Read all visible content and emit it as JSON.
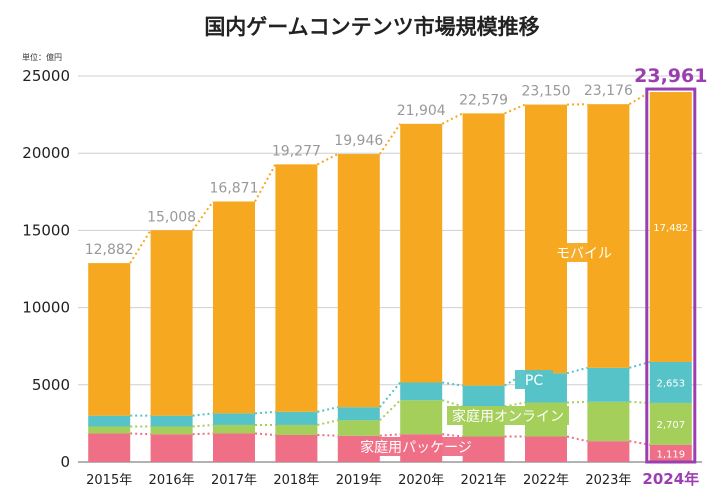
{
  "chart_data": {
    "type": "bar",
    "stacked": true,
    "title": "国内ゲームコンテンツ市場規模推移",
    "unit_label": "単位：億円",
    "categories": [
      "2015年",
      "2016年",
      "2017年",
      "2018年",
      "2019年",
      "2020年",
      "2021年",
      "2022年",
      "2023年",
      "2024年"
    ],
    "highlight_index": 9,
    "ylim": [
      0,
      25000
    ],
    "yticks": [
      0,
      5000,
      10000,
      15000,
      20000,
      25000
    ],
    "grid": true,
    "totals": [
      12882,
      15008,
      16871,
      19277,
      19946,
      21904,
      22579,
      23150,
      23176,
      23961
    ],
    "total_labels": [
      "12,882",
      "15,008",
      "16,871",
      "19,277",
      "19,946",
      "21,904",
      "22,579",
      "23,150",
      "23,176",
      "23,961"
    ],
    "series": [
      {
        "name": "家庭用パッケージ",
        "color": "#ee6f86",
        "values": [
          1850,
          1800,
          1850,
          1750,
          1700,
          1800,
          1650,
          1650,
          1350,
          1119
        ]
      },
      {
        "name": "家庭用オンライン",
        "color": "#a4cf5a",
        "values": [
          450,
          500,
          550,
          650,
          1000,
          2200,
          1950,
          2200,
          2550,
          2707
        ]
      },
      {
        "name": "PC",
        "color": "#56c3c8",
        "values": [
          700,
          700,
          750,
          850,
          850,
          1150,
          1350,
          1900,
          2200,
          2653
        ]
      },
      {
        "name": "モバイル",
        "color": "#f6a920",
        "values": [
          9882,
          12008,
          13721,
          16027,
          16396,
          16754,
          17629,
          17400,
          17076,
          17482
        ]
      }
    ],
    "segment_labels_2024": [
      "1,119",
      "2,707",
      "2,653",
      "17,482"
    ]
  }
}
